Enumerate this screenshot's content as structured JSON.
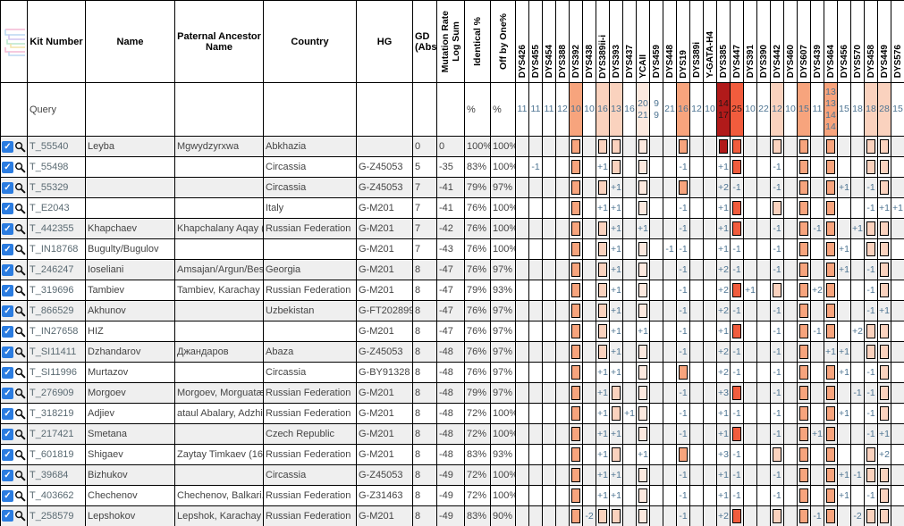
{
  "header": {
    "kit": "Kit Number",
    "name": "Name",
    "paternal": "Paternal Ancestor Name",
    "country": "Country",
    "hg": "HG",
    "gd": "GD (Abs)",
    "stats": [
      {
        "lines": [
          "Mutation Rate",
          "Log Sum"
        ]
      },
      {
        "lines": [
          "Identical %"
        ]
      },
      {
        "lines": [
          "Off by One%"
        ]
      }
    ],
    "markers": [
      "DYS426",
      "DYS455",
      "DYS454",
      "DYS388",
      "DYS392",
      "DYS438",
      "DYS389ii-i",
      "DYS393",
      "DYS437",
      "YCAII",
      "DYS459",
      "DYS448",
      "DYS19",
      "DYS389i",
      "Y-GATA-H4",
      "DYS385",
      "DYS447",
      "DYS391",
      "DYS390",
      "DYS442",
      "DYS460",
      "DYS607",
      "DYS439",
      "DYS464",
      "DYS456",
      "DYS570",
      "DYS458",
      "DYS449",
      "DYS576"
    ]
  },
  "colors": {
    "d": "#b11a1a",
    "h": "#f15c3d",
    "m": "#f7a47d",
    "l": "#fad2be",
    "f": "#fce9df"
  },
  "query": {
    "label": "Query",
    "pct1": "%",
    "pct2": "%",
    "values": [
      [
        "11"
      ],
      [
        "11"
      ],
      [
        "11"
      ],
      [
        "12"
      ],
      [
        "10"
      ],
      [
        "10"
      ],
      [
        "16"
      ],
      [
        "13"
      ],
      [
        "16"
      ],
      [
        "20",
        "21"
      ],
      [
        "9",
        "9"
      ],
      [
        "21"
      ],
      [
        "16"
      ],
      [
        "12"
      ],
      [
        "10"
      ],
      [
        "14",
        "17"
      ],
      [
        "25"
      ],
      [
        "10"
      ],
      [
        "22"
      ],
      [
        "12"
      ],
      [
        "10"
      ],
      [
        "15"
      ],
      [
        "11"
      ],
      [
        "13",
        "13",
        "14",
        "14"
      ],
      [
        "15"
      ],
      [
        "18"
      ],
      [
        "18"
      ],
      [
        "28"
      ],
      [
        "15"
      ]
    ],
    "bg": [
      "",
      "",
      "",
      "",
      "m",
      "",
      "l",
      "l",
      "",
      "f",
      "",
      "",
      "m",
      "",
      "",
      "d",
      "h",
      "",
      "",
      "l",
      "",
      "m",
      "",
      "m",
      "",
      "",
      "l",
      "l",
      ""
    ]
  },
  "rows": [
    {
      "kit": "T_55540",
      "name": "Leyba",
      "paternal": "Mgwydzyrxwa",
      "country": "Abkhazia",
      "hg": "",
      "gd": "0",
      "log": "0",
      "identical": "100%",
      "offbyone": "100%",
      "cells": [
        "",
        "",
        "",
        "",
        "#m",
        "",
        "#l",
        "#l",
        "",
        "#f",
        "",
        "",
        "#m",
        "",
        "",
        "#d",
        "#h",
        "",
        "",
        "#l",
        "",
        "#m",
        "",
        "#m",
        "",
        "",
        "#l",
        "#l",
        ""
      ]
    },
    {
      "kit": "T_55498",
      "name": "",
      "paternal": "",
      "country": "Circassia",
      "hg": "G-Z45053",
      "gd": "5",
      "log": "-35",
      "identical": "83%",
      "offbyone": "100%",
      "cells": [
        "",
        "-1",
        "",
        "",
        "#m",
        "",
        "+1",
        "#l",
        "",
        "#f",
        "",
        "",
        "-1",
        "",
        "",
        "+1",
        "#h",
        "",
        "",
        "-1",
        "",
        "#m",
        "",
        "#m",
        "",
        "",
        "#l",
        "#l",
        ""
      ]
    },
    {
      "kit": "T_55329",
      "name": "",
      "paternal": "",
      "country": "Circassia",
      "hg": "G-Z45053",
      "gd": "7",
      "log": "-41",
      "identical": "79%",
      "offbyone": "97%",
      "cells": [
        "",
        "",
        "",
        "",
        "#m",
        "",
        "#l",
        "+1",
        "",
        "#f",
        "",
        "",
        "#m",
        "",
        "",
        "+2",
        "-1",
        "",
        "",
        "-1",
        "",
        "#m",
        "",
        "#m",
        "+1",
        "",
        "-1",
        "#l",
        ""
      ]
    },
    {
      "kit": "T_E2043",
      "name": "",
      "paternal": "",
      "country": "Italy",
      "hg": "G-M201",
      "gd": "7",
      "log": "-41",
      "identical": "76%",
      "offbyone": "100%",
      "cells": [
        "",
        "",
        "",
        "",
        "#m",
        "",
        "+1",
        "+1",
        "",
        "#f",
        "",
        "",
        "-1",
        "",
        "",
        "+1",
        "#h",
        "",
        "",
        "#l",
        "",
        "#m",
        "",
        "#m",
        "",
        "",
        "-1",
        "+1",
        "+1"
      ]
    },
    {
      "kit": "T_442355",
      "name": "Khapchaev",
      "paternal": "Khapchalany Aqay (...",
      "country": "Russian Federation",
      "hg": "G-M201",
      "gd": "7",
      "log": "-42",
      "identical": "76%",
      "offbyone": "100%",
      "cells": [
        "",
        "",
        "",
        "",
        "#m",
        "",
        "#l",
        "+1",
        "",
        "+1",
        "",
        "",
        "-1",
        "",
        "",
        "+1",
        "#h",
        "",
        "",
        "-1",
        "",
        "#m",
        "-1",
        "#m",
        "",
        "+1",
        "#l",
        "#l",
        ""
      ]
    },
    {
      "kit": "T_IN18768",
      "name": "Bugulty/Bugulov",
      "paternal": "",
      "country": "",
      "hg": "G-M201",
      "gd": "7",
      "log": "-43",
      "identical": "76%",
      "offbyone": "100%",
      "cells": [
        "",
        "",
        "",
        "",
        "#m",
        "",
        "#l",
        "+1",
        "",
        "#f",
        "",
        "-1",
        "-1",
        "",
        "",
        "+1",
        "-1",
        "",
        "",
        "-1",
        "",
        "#m",
        "",
        "#m",
        "+1",
        "",
        "#l",
        "#l",
        ""
      ]
    },
    {
      "kit": "T_246247",
      "name": "Ioseliani",
      "paternal": "Amsajan/Argun/Bes...",
      "country": "Georgia",
      "hg": "G-M201",
      "gd": "8",
      "log": "-47",
      "identical": "76%",
      "offbyone": "97%",
      "cells": [
        "",
        "",
        "",
        "",
        "#m",
        "",
        "#l",
        "+1",
        "",
        "#f",
        "",
        "",
        "-1",
        "",
        "",
        "+2",
        "-1",
        "",
        "",
        "-1",
        "",
        "#m",
        "",
        "#m",
        "+1",
        "",
        "-1",
        "#l",
        ""
      ]
    },
    {
      "kit": "T_319696",
      "name": "Tambiev",
      "paternal": "Tambiev, Karachay",
      "country": "Russian Federation",
      "hg": "G-M201",
      "gd": "8",
      "log": "-47",
      "identical": "79%",
      "offbyone": "93%",
      "cells": [
        "",
        "",
        "",
        "",
        "#m",
        "",
        "#l",
        "+1",
        "",
        "#f",
        "",
        "",
        "-1",
        "",
        "",
        "+2",
        "#h",
        "+1",
        "",
        "#l",
        "",
        "#m",
        "+2",
        "#m",
        "",
        "",
        "-1",
        "#l",
        ""
      ]
    },
    {
      "kit": "T_866529",
      "name": "Akhunov",
      "paternal": "",
      "country": "Uzbekistan",
      "hg": "G-FT202899",
      "gd": "8",
      "log": "-47",
      "identical": "76%",
      "offbyone": "97%",
      "cells": [
        "",
        "",
        "",
        "",
        "#m",
        "",
        "#l",
        "+1",
        "",
        "#f",
        "",
        "",
        "-1",
        "",
        "",
        "+2",
        "-1",
        "",
        "",
        "-1",
        "",
        "#m",
        "",
        "#m",
        "",
        "",
        "-1",
        "+1",
        ""
      ]
    },
    {
      "kit": "T_IN27658",
      "name": "HIZ",
      "paternal": "",
      "country": "",
      "hg": "G-M201",
      "gd": "8",
      "log": "-47",
      "identical": "76%",
      "offbyone": "97%",
      "cells": [
        "",
        "",
        "",
        "",
        "#m",
        "",
        "#l",
        "+1",
        "",
        "+1",
        "",
        "",
        "-1",
        "",
        "",
        "+1",
        "#h",
        "",
        "",
        "-1",
        "",
        "#m",
        "-1",
        "#m",
        "",
        "+2",
        "#l",
        "#l",
        ""
      ]
    },
    {
      "kit": "T_SI11411",
      "name": "Dzhandarov",
      "paternal": "Джандаров",
      "country": "Abaza",
      "hg": "G-Z45053",
      "gd": "8",
      "log": "-48",
      "identical": "76%",
      "offbyone": "97%",
      "cells": [
        "",
        "",
        "",
        "",
        "#m",
        "",
        "#l",
        "+1",
        "",
        "#f",
        "",
        "",
        "-1",
        "",
        "",
        "+2",
        "-1",
        "",
        "",
        "-1",
        "",
        "#m",
        "",
        "+1",
        "+1",
        "",
        "#l",
        "#l",
        ""
      ]
    },
    {
      "kit": "T_SI11996",
      "name": "Murtazov",
      "paternal": "",
      "country": "Circassia",
      "hg": "G-BY91328",
      "gd": "8",
      "log": "-48",
      "identical": "76%",
      "offbyone": "97%",
      "cells": [
        "",
        "",
        "",
        "",
        "#m",
        "",
        "+1",
        "+1",
        "",
        "#f",
        "",
        "",
        "#m",
        "",
        "",
        "+2",
        "-1",
        "",
        "",
        "-1",
        "",
        "#m",
        "",
        "#m",
        "+1",
        "",
        "-1",
        "#l",
        ""
      ]
    },
    {
      "kit": "T_276909",
      "name": "Morgoev",
      "paternal": "Morgoev, Morguatæ...",
      "country": "Russian Federation",
      "hg": "G-M201",
      "gd": "8",
      "log": "-48",
      "identical": "79%",
      "offbyone": "97%",
      "cells": [
        "",
        "",
        "",
        "",
        "#m",
        "",
        "+1",
        "#l",
        "",
        "#f",
        "",
        "",
        "-1",
        "",
        "",
        "+3",
        "#h",
        "",
        "",
        "-1",
        "",
        "#m",
        "",
        "#m",
        "",
        "-1",
        "-1",
        "#l",
        ""
      ]
    },
    {
      "kit": "T_318219",
      "name": "Adjiev",
      "paternal": "ataul Abalary, Adzhi...",
      "country": "Russian Federation",
      "hg": "G-M201",
      "gd": "8",
      "log": "-48",
      "identical": "72%",
      "offbyone": "100%",
      "cells": [
        "",
        "",
        "",
        "",
        "#m",
        "",
        "+1",
        "#l",
        "+1",
        "#f",
        "",
        "",
        "-1",
        "",
        "",
        "+1",
        "-1",
        "",
        "",
        "-1",
        "",
        "#m",
        "",
        "#m",
        "+1",
        "",
        "-1",
        "#l",
        ""
      ]
    },
    {
      "kit": "T_217421",
      "name": "Smetana",
      "paternal": "",
      "country": "Czech Republic",
      "hg": "G-M201",
      "gd": "8",
      "log": "-48",
      "identical": "72%",
      "offbyone": "100%",
      "cells": [
        "",
        "",
        "",
        "",
        "#m",
        "",
        "+1",
        "+1",
        "",
        "#f",
        "",
        "",
        "-1",
        "",
        "",
        "+1",
        "#h",
        "",
        "",
        "-1",
        "",
        "#m",
        "+1",
        "#m",
        "",
        "",
        "-1",
        "+1",
        ""
      ]
    },
    {
      "kit": "T_601819",
      "name": "Shigaev",
      "paternal": "Zaytay Timkaev (16...",
      "country": "Russian Federation",
      "hg": "G-M201",
      "gd": "8",
      "log": "-48",
      "identical": "83%",
      "offbyone": "93%",
      "cells": [
        "",
        "",
        "",
        "",
        "#m",
        "",
        "+1",
        "#l",
        "",
        "+1",
        "",
        "",
        "#m",
        "",
        "",
        "+3",
        "-1",
        "",
        "",
        "#l",
        "",
        "#m",
        "",
        "#m",
        "",
        "",
        "#l",
        "+2",
        ""
      ]
    },
    {
      "kit": "T_39684",
      "name": "Bizhukov",
      "paternal": "",
      "country": "Circassia",
      "hg": "G-Z45053",
      "gd": "8",
      "log": "-49",
      "identical": "72%",
      "offbyone": "100%",
      "cells": [
        "",
        "",
        "",
        "",
        "#m",
        "",
        "+1",
        "+1",
        "",
        "#f",
        "",
        "",
        "-1",
        "",
        "",
        "+1",
        "-1",
        "",
        "",
        "-1",
        "",
        "#m",
        "",
        "#m",
        "+1",
        "-1",
        "#l",
        "#l",
        ""
      ]
    },
    {
      "kit": "T_403662",
      "name": "Chechenov",
      "paternal": "Chechenov, Balkari...",
      "country": "Russian Federation",
      "hg": "G-Z31463",
      "gd": "8",
      "log": "-49",
      "identical": "72%",
      "offbyone": "100%",
      "cells": [
        "",
        "",
        "",
        "",
        "#m",
        "",
        "+1",
        "+1",
        "",
        "#f",
        "",
        "",
        "-1",
        "",
        "",
        "+1",
        "-1",
        "",
        "",
        "-1",
        "",
        "#m",
        "",
        "#m",
        "+1",
        "",
        "-1",
        "#l",
        ""
      ]
    },
    {
      "kit": "T_258579",
      "name": "Lepshokov",
      "paternal": "Lepshok, Karachay",
      "country": "Russian Federation",
      "hg": "G-M201",
      "gd": "8",
      "log": "-49",
      "identical": "83%",
      "offbyone": "90%",
      "cells": [
        "",
        "",
        "",
        "",
        "#m",
        "-2",
        "#l",
        "#l",
        "",
        "#f",
        "",
        "",
        "-1",
        "",
        "",
        "+2",
        "#h",
        "",
        "",
        "#l",
        "",
        "#m",
        "-1",
        "#m",
        "",
        "-2",
        "#l",
        "#l",
        ""
      ]
    }
  ]
}
